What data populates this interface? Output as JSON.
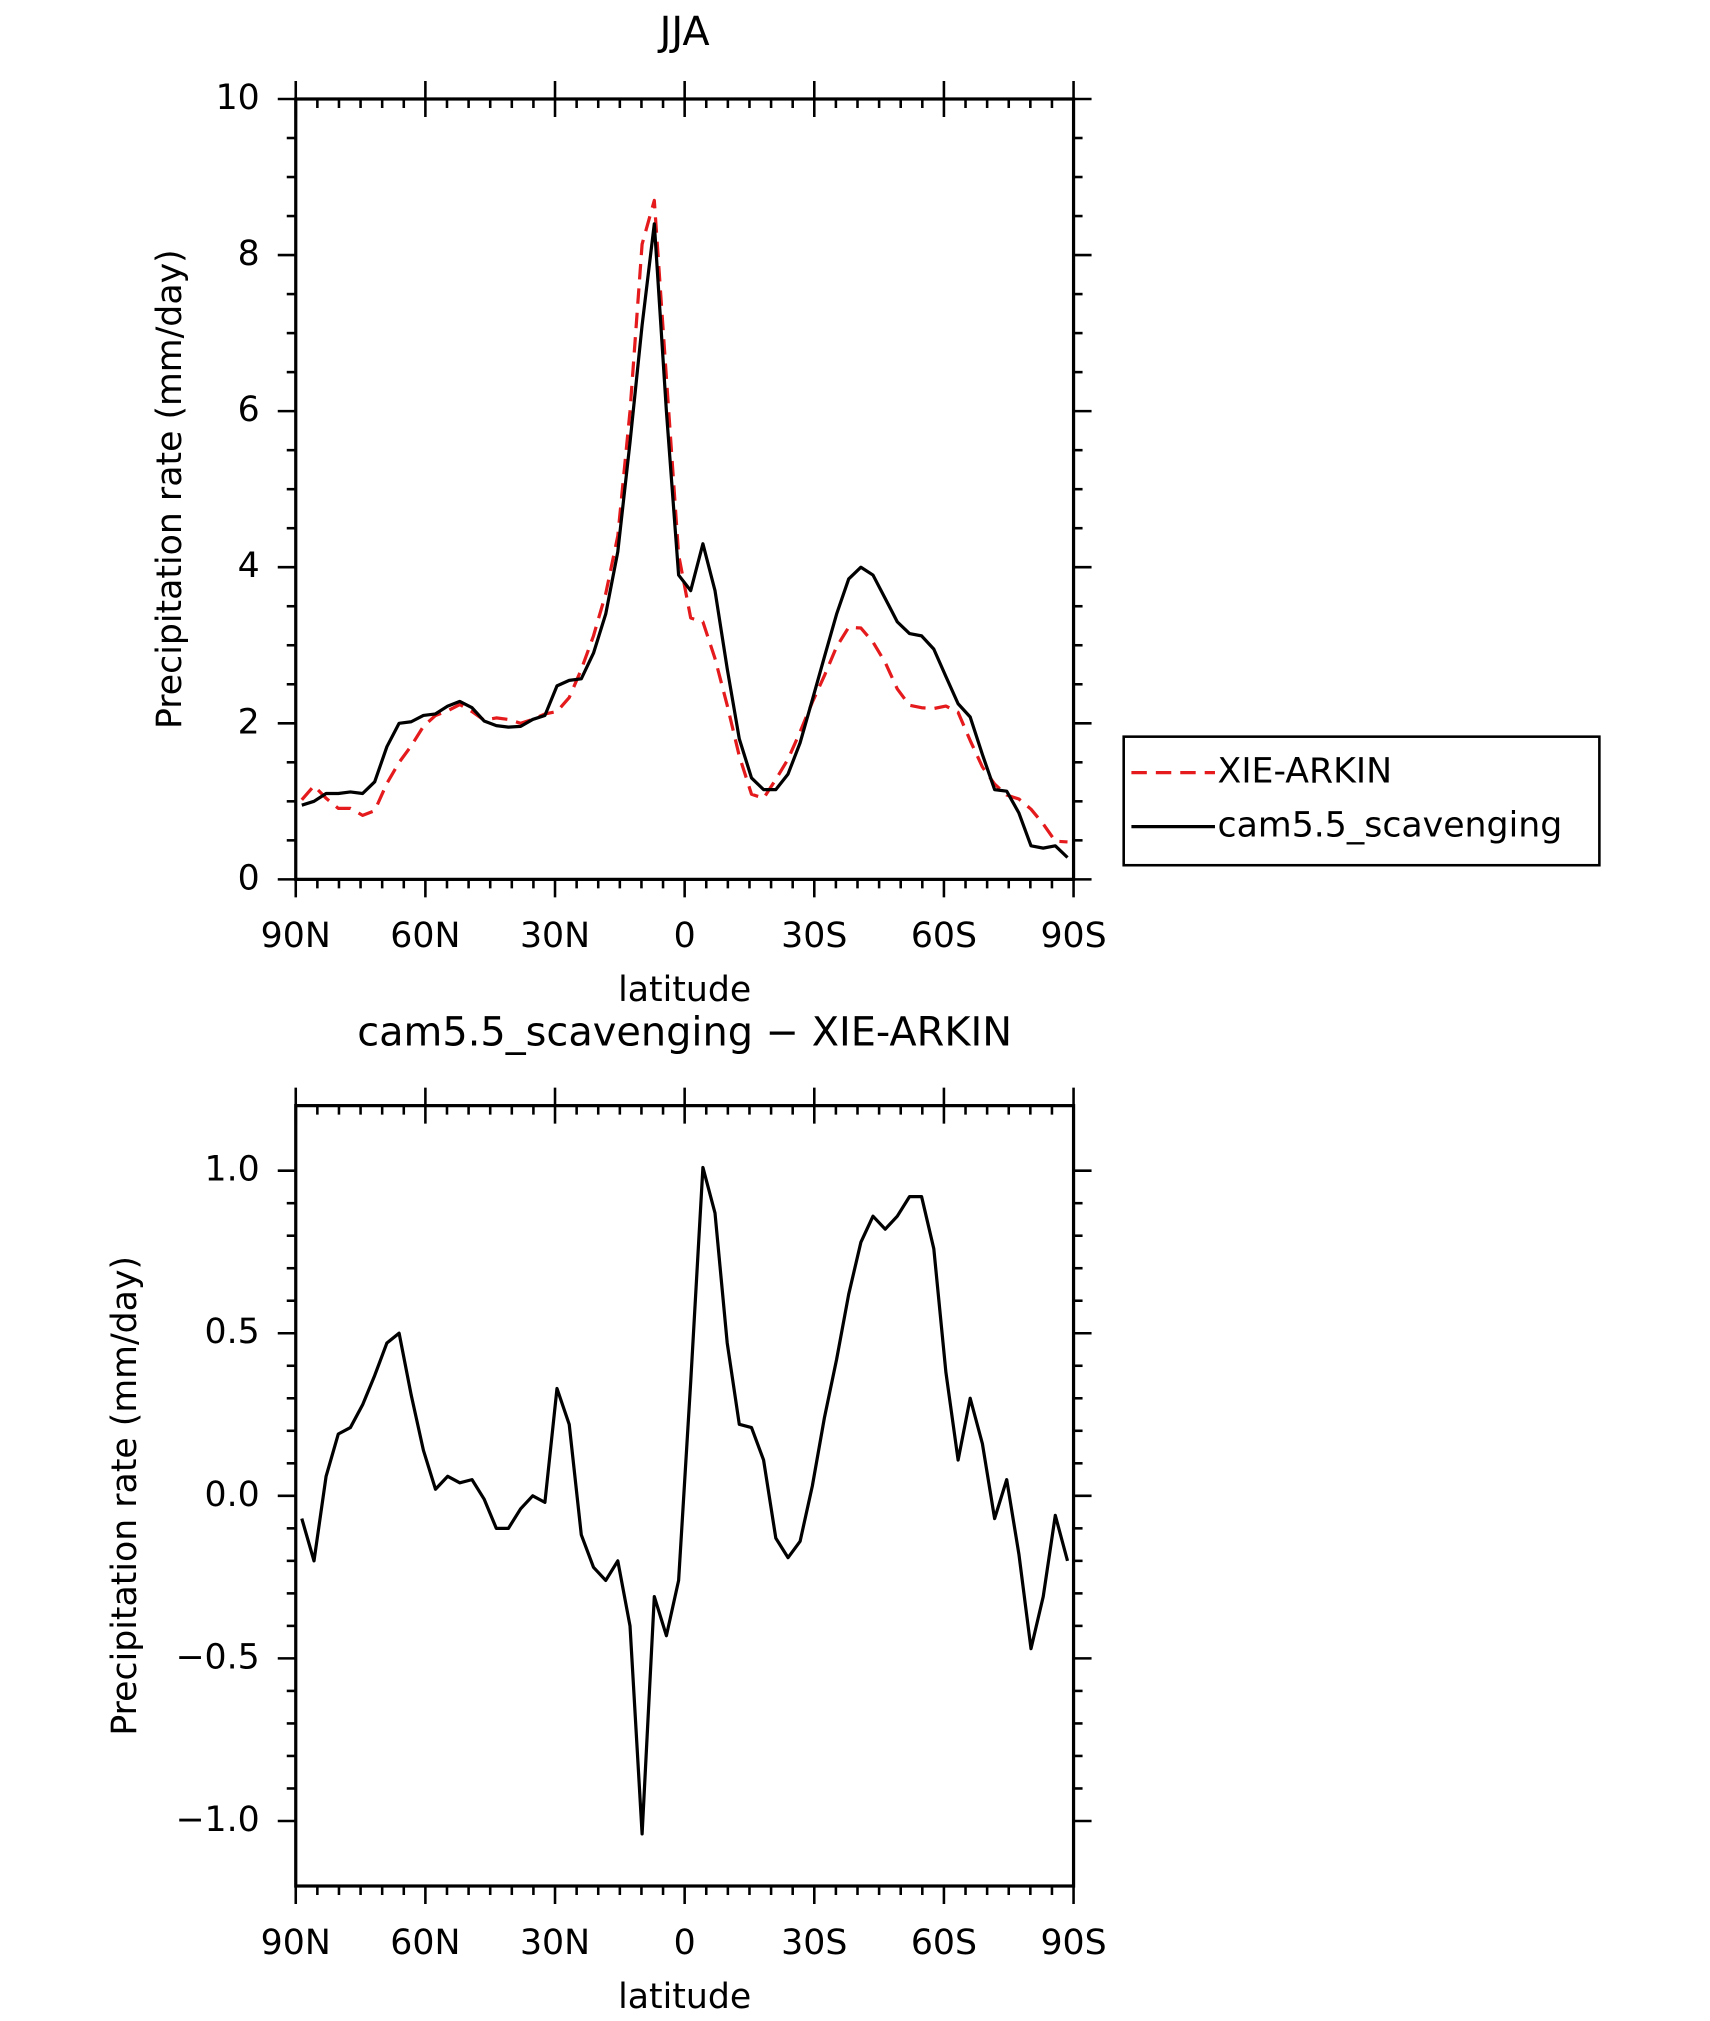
{
  "chart_data": [
    {
      "type": "line",
      "title": "JJA",
      "xlabel": "latitude",
      "ylabel": "Precipitation rate (mm/day)",
      "x": [
        88.594,
        85.781,
        82.969,
        80.156,
        77.344,
        74.531,
        71.719,
        68.906,
        66.094,
        63.281,
        60.469,
        57.656,
        54.844,
        52.031,
        49.219,
        46.406,
        43.594,
        40.781,
        37.969,
        35.156,
        32.344,
        29.531,
        26.719,
        23.906,
        21.094,
        18.281,
        15.469,
        12.656,
        9.844,
        7.031,
        4.219,
        1.406,
        -1.406,
        -4.219,
        -7.031,
        -9.844,
        -12.656,
        -15.469,
        -18.281,
        -21.094,
        -23.906,
        -26.719,
        -29.531,
        -32.344,
        -35.156,
        -37.969,
        -40.781,
        -43.594,
        -46.406,
        -49.219,
        -52.031,
        -54.844,
        -57.656,
        -60.469,
        -63.281,
        -66.094,
        -68.906,
        -71.719,
        -74.531,
        -77.344,
        -80.156,
        -82.969,
        -85.781,
        -88.594
      ],
      "series": [
        {
          "name": "XIE-ARKIN",
          "color": "#e41a1c",
          "dash": true,
          "values": [
            1.02,
            1.2,
            1.04,
            0.91,
            0.91,
            0.82,
            0.88,
            1.23,
            1.5,
            1.71,
            1.96,
            2.1,
            2.16,
            2.24,
            2.15,
            2.04,
            2.07,
            2.05,
            2.0,
            2.05,
            2.12,
            2.15,
            2.33,
            2.69,
            3.12,
            3.66,
            4.4,
            6.0,
            8.14,
            8.7,
            6.43,
            4.16,
            3.35,
            3.3,
            2.83,
            2.23,
            1.58,
            1.09,
            1.04,
            1.28,
            1.54,
            1.89,
            2.27,
            2.61,
            2.98,
            3.23,
            3.22,
            3.04,
            2.78,
            2.44,
            2.23,
            2.2,
            2.19,
            2.22,
            2.14,
            1.78,
            1.44,
            1.22,
            1.08,
            1.03,
            0.9,
            0.71,
            0.49,
            0.48
          ]
        },
        {
          "name": "cam5.5_scavenging",
          "color": "#000000",
          "dash": false,
          "values": [
            0.95,
            1.0,
            1.1,
            1.1,
            1.12,
            1.1,
            1.25,
            1.7,
            2.0,
            2.02,
            2.1,
            2.12,
            2.22,
            2.28,
            2.2,
            2.03,
            1.97,
            1.95,
            1.96,
            2.05,
            2.1,
            2.48,
            2.55,
            2.57,
            2.9,
            3.4,
            4.2,
            5.6,
            7.1,
            8.4,
            6.0,
            3.9,
            3.7,
            4.3,
            3.7,
            2.7,
            1.8,
            1.3,
            1.15,
            1.15,
            1.35,
            1.75,
            2.3,
            2.85,
            3.4,
            3.85,
            4.0,
            3.9,
            3.6,
            3.3,
            3.15,
            3.12,
            2.95,
            2.6,
            2.25,
            2.08,
            1.6,
            1.15,
            1.13,
            0.85,
            0.43,
            0.4,
            0.43,
            0.28
          ]
        }
      ],
      "xlim": [
        90,
        -90
      ],
      "xticks": [
        {
          "value": 90,
          "label": "90N"
        },
        {
          "value": 60,
          "label": "60N"
        },
        {
          "value": 30,
          "label": "30N"
        },
        0,
        {
          "value": -30,
          "label": "30S"
        },
        {
          "value": -60,
          "label": "60S"
        },
        {
          "value": -90,
          "label": "90S"
        }
      ],
      "ylim": [
        0,
        10
      ],
      "yticks": [
        0,
        2,
        4,
        6,
        8,
        10
      ],
      "legend": "outside-right"
    },
    {
      "type": "line",
      "title": "cam5.5_scavenging − XIE-ARKIN",
      "xlabel": "latitude",
      "ylabel": "Precipitation rate (mm/day)",
      "x": [
        88.594,
        85.781,
        82.969,
        80.156,
        77.344,
        74.531,
        71.719,
        68.906,
        66.094,
        63.281,
        60.469,
        57.656,
        54.844,
        52.031,
        49.219,
        46.406,
        43.594,
        40.781,
        37.969,
        35.156,
        32.344,
        29.531,
        26.719,
        23.906,
        21.094,
        18.281,
        15.469,
        12.656,
        9.844,
        7.031,
        4.219,
        1.406,
        -1.406,
        -4.219,
        -7.031,
        -9.844,
        -12.656,
        -15.469,
        -18.281,
        -21.094,
        -23.906,
        -26.719,
        -29.531,
        -32.344,
        -35.156,
        -37.969,
        -40.781,
        -43.594,
        -46.406,
        -49.219,
        -52.031,
        -54.844,
        -57.656,
        -60.469,
        -63.281,
        -66.094,
        -68.906,
        -71.719,
        -74.531,
        -77.344,
        -80.156,
        -82.969,
        -85.781,
        -88.594
      ],
      "color": "#000000",
      "values": [
        -0.07,
        -0.2,
        0.06,
        0.19,
        0.21,
        0.28,
        0.37,
        0.47,
        0.5,
        0.31,
        0.14,
        0.02,
        0.06,
        0.04,
        0.05,
        -0.01,
        -0.1,
        -0.1,
        -0.04,
        0.0,
        -0.02,
        0.33,
        0.22,
        -0.12,
        -0.22,
        -0.26,
        -0.2,
        -0.4,
        -1.04,
        -0.31,
        -0.43,
        -0.26,
        0.35,
        1.01,
        0.87,
        0.47,
        0.22,
        0.21,
        0.11,
        -0.13,
        -0.19,
        -0.14,
        0.03,
        0.24,
        0.42,
        0.62,
        0.78,
        0.86,
        0.82,
        0.86,
        0.92,
        0.92,
        0.76,
        0.38,
        0.11,
        0.3,
        0.16,
        -0.07,
        0.05,
        -0.18,
        -0.47,
        -0.31,
        -0.06,
        -0.2
      ],
      "xlim": [
        90,
        -90
      ],
      "xticks": [
        {
          "value": 90,
          "label": "90N"
        },
        {
          "value": 60,
          "label": "60N"
        },
        {
          "value": 30,
          "label": "30N"
        },
        0,
        {
          "value": -30,
          "label": "30S"
        },
        {
          "value": -60,
          "label": "60S"
        },
        {
          "value": -90,
          "label": "90S"
        }
      ],
      "ylim": [
        -1.2,
        1.2
      ],
      "yticks": [
        {
          "value": -1.0,
          "label": "−1.0"
        },
        {
          "value": -0.5,
          "label": "−0.5"
        },
        {
          "value": 0.0,
          "label": "0.0"
        },
        0.5,
        {
          "value": 1.0,
          "label": "1.0"
        }
      ]
    }
  ]
}
